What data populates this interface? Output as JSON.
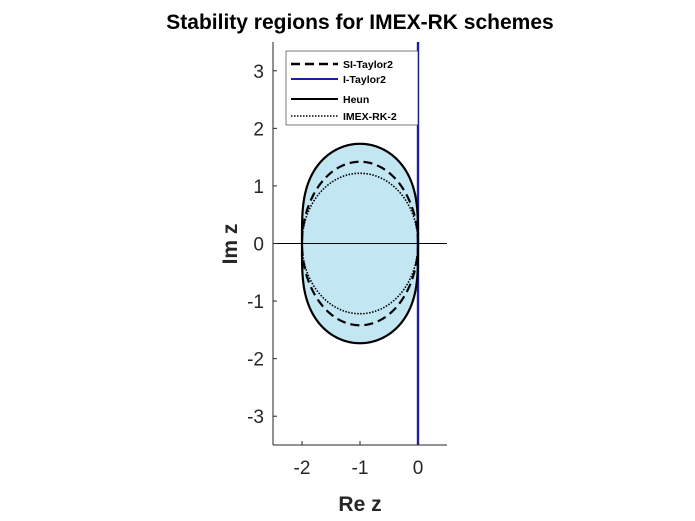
{
  "chart_data": {
    "type": "line",
    "title": "Stability regions for IMEX-RK schemes",
    "xlabel": "Re z",
    "ylabel": "Im z",
    "xlim": [
      -2.5,
      0.5
    ],
    "ylim": [
      -3.5,
      3.5
    ],
    "xticks": [
      -2,
      -1,
      0
    ],
    "yticks": [
      -3,
      -2,
      -1,
      0,
      1,
      2,
      3
    ],
    "legend_position": "top",
    "fill_color": "#c3e6f3",
    "series": [
      {
        "name": "SI-Taylor2",
        "style": "dashed",
        "color": "#000000",
        "shape": "ellipse",
        "center": [
          -1,
          0
        ],
        "radii": [
          1,
          1.42
        ]
      },
      {
        "name": "I-Taylor2",
        "style": "solid",
        "color": "#1f1fa6",
        "shape": "vline",
        "x": 0
      },
      {
        "name": "Heun",
        "style": "solid",
        "color": "#000000",
        "shape": "heun"
      },
      {
        "name": "IMEX-RK-2",
        "style": "dotted",
        "color": "#000000",
        "shape": "ellipse",
        "center": [
          -1,
          0
        ],
        "radii": [
          1,
          1.22
        ]
      }
    ],
    "reference_lines": [
      {
        "axis": "y",
        "value": 0
      }
    ]
  }
}
